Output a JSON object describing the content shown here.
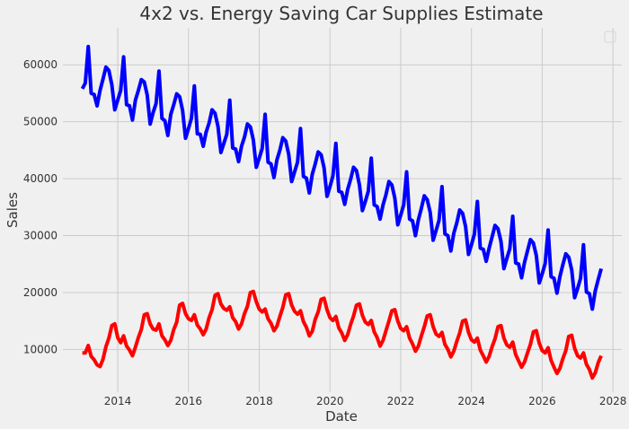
{
  "chart_data": {
    "type": "line",
    "title": "4x2 vs. Energy Saving Car Supplies Estimate",
    "xlabel": "Date",
    "ylabel": "Sales",
    "xlim": [
      2012.45,
      2028.25
    ],
    "ylim": [
      2500,
      66500
    ],
    "grid": true,
    "legend": "top-right (empty)",
    "x_ticks": [
      2014,
      2016,
      2018,
      2020,
      2022,
      2024,
      2026,
      2028
    ],
    "x_tick_labels": [
      "2014",
      "2016",
      "2018",
      "2020",
      "2022",
      "2024",
      "2026",
      "2028"
    ],
    "y_ticks": [
      10000,
      20000,
      30000,
      40000,
      50000,
      60000
    ],
    "y_tick_labels": [
      "10000",
      "20000",
      "30000",
      "40000",
      "50000",
      "60000"
    ],
    "x_start": "2013-01",
    "x_end": "2027-09",
    "series": [
      {
        "color": "#0000ff",
        "x": [
          "2013-01",
          "2013-02",
          "2013-03",
          "2013-04",
          "2013-05",
          "2013-06",
          "2013-07",
          "2013-08",
          "2013-09",
          "2013-10",
          "2013-11",
          "2013-12",
          "2014-01",
          "2014-02",
          "2014-03",
          "2014-04",
          "2014-05",
          "2014-06",
          "2014-07",
          "2014-08",
          "2014-09",
          "2014-10",
          "2014-11",
          "2014-12",
          "2015-01",
          "2015-02",
          "2015-03",
          "2015-04",
          "2015-05",
          "2015-06",
          "2015-07",
          "2015-08",
          "2015-09",
          "2015-10",
          "2015-11",
          "2015-12",
          "2016-01",
          "2016-02",
          "2016-03",
          "2016-04",
          "2016-05",
          "2016-06",
          "2016-07",
          "2016-08",
          "2016-09",
          "2016-10",
          "2016-11",
          "2016-12",
          "2017-01",
          "2017-02",
          "2017-03",
          "2017-04",
          "2017-05",
          "2017-06",
          "2017-07",
          "2017-08",
          "2017-09",
          "2017-10",
          "2017-11",
          "2017-12",
          "2018-01",
          "2018-02",
          "2018-03",
          "2018-04",
          "2018-05",
          "2018-06",
          "2018-07",
          "2018-08",
          "2018-09",
          "2018-10",
          "2018-11",
          "2018-12",
          "2019-01",
          "2019-02",
          "2019-03",
          "2019-04",
          "2019-05",
          "2019-06",
          "2019-07",
          "2019-08",
          "2019-09",
          "2019-10",
          "2019-11",
          "2019-12",
          "2020-01",
          "2020-02",
          "2020-03",
          "2020-04",
          "2020-05",
          "2020-06",
          "2020-07",
          "2020-08",
          "2020-09",
          "2020-10",
          "2020-11",
          "2020-12",
          "2021-01",
          "2021-02",
          "2021-03",
          "2021-04",
          "2021-05",
          "2021-06",
          "2021-07",
          "2021-08",
          "2021-09",
          "2021-10",
          "2021-11",
          "2021-12",
          "2022-01",
          "2022-02",
          "2022-03",
          "2022-04",
          "2022-05",
          "2022-06",
          "2022-07",
          "2022-08",
          "2022-09",
          "2022-10",
          "2022-11",
          "2022-12",
          "2023-01",
          "2023-02",
          "2023-03",
          "2023-04",
          "2023-05",
          "2023-06",
          "2023-07",
          "2023-08",
          "2023-09",
          "2023-10",
          "2023-11",
          "2023-12",
          "2024-01",
          "2024-02",
          "2024-03",
          "2024-04",
          "2024-05",
          "2024-06",
          "2024-07",
          "2024-08",
          "2024-09",
          "2024-10",
          "2024-11",
          "2024-12",
          "2025-01",
          "2025-02",
          "2025-03",
          "2025-04",
          "2025-05",
          "2025-06",
          "2025-07",
          "2025-08",
          "2025-09",
          "2025-10",
          "2025-11",
          "2025-12",
          "2026-01",
          "2026-02",
          "2026-03",
          "2026-04",
          "2026-05",
          "2026-06",
          "2026-07",
          "2026-08",
          "2026-09",
          "2026-10",
          "2026-11",
          "2026-12",
          "2027-01",
          "2027-02",
          "2027-03",
          "2027-04",
          "2027-05",
          "2027-06",
          "2027-07",
          "2027-08",
          "2027-09"
        ],
        "y": [
          55800,
          56800,
          63200,
          55000,
          54800,
          52800,
          55500,
          57500,
          59600,
          59000,
          56500,
          52100,
          53800,
          55500,
          61400,
          53000,
          52800,
          50300,
          53800,
          55500,
          57400,
          57000,
          54700,
          49600,
          51600,
          53200,
          58900,
          50600,
          50200,
          47600,
          51300,
          53000,
          54900,
          54400,
          52000,
          47100,
          48800,
          50600,
          56300,
          47900,
          47800,
          45700,
          48200,
          49800,
          52100,
          51500,
          49200,
          44600,
          46200,
          47800,
          53800,
          45400,
          45200,
          43000,
          45700,
          47300,
          49600,
          49100,
          46800,
          42000,
          43600,
          45300,
          51300,
          42900,
          42600,
          40200,
          43300,
          45000,
          47200,
          46600,
          44300,
          39500,
          41200,
          42900,
          48800,
          40400,
          40100,
          37500,
          40800,
          42600,
          44700,
          44200,
          41900,
          36900,
          38600,
          40500,
          46200,
          37800,
          37600,
          35500,
          38100,
          39900,
          42000,
          41400,
          38900,
          34400,
          36000,
          37800,
          43600,
          35400,
          35100,
          32900,
          35400,
          37200,
          39500,
          38900,
          36600,
          31900,
          33600,
          35400,
          41200,
          32900,
          32600,
          30000,
          32800,
          34800,
          37000,
          36300,
          34100,
          29200,
          30900,
          32700,
          38600,
          30300,
          30000,
          27300,
          30400,
          32200,
          34500,
          33900,
          31600,
          26700,
          28400,
          30300,
          36000,
          27800,
          27600,
          25500,
          27800,
          29800,
          31800,
          31200,
          29000,
          24200,
          26000,
          27700,
          33400,
          25200,
          25000,
          22600,
          25300,
          27300,
          29300,
          28700,
          26500,
          21700,
          23300,
          25100,
          31000,
          22800,
          22500,
          19900,
          22800,
          24900,
          26800,
          26200,
          24000,
          19100,
          20700,
          22500,
          28400,
          20100,
          19800,
          17100,
          20300,
          22300,
          24200
        ]
      },
      {
        "color": "#ff0000",
        "x_same_as_series": 0,
        "y": [
          9400,
          9400,
          10700,
          8800,
          8200,
          7300,
          7000,
          8300,
          10500,
          12000,
          14200,
          14500,
          12100,
          11200,
          12400,
          10600,
          9900,
          8900,
          10400,
          12100,
          13500,
          16100,
          16300,
          14500,
          13600,
          13400,
          14500,
          12400,
          11700,
          10700,
          11600,
          13500,
          14800,
          17800,
          18100,
          16300,
          15400,
          15100,
          16100,
          14300,
          13600,
          12600,
          13600,
          15600,
          17000,
          19500,
          19800,
          18000,
          17200,
          16900,
          17500,
          15600,
          14900,
          13600,
          14500,
          16300,
          17600,
          20000,
          20200,
          18400,
          17100,
          16600,
          17100,
          15400,
          14600,
          13300,
          14100,
          15800,
          17400,
          19600,
          19800,
          17800,
          16700,
          16200,
          16800,
          14900,
          13900,
          12400,
          13200,
          15300,
          16600,
          18800,
          19000,
          17000,
          15600,
          15100,
          15800,
          13800,
          12900,
          11600,
          12600,
          14400,
          15900,
          17800,
          18000,
          16000,
          14800,
          14400,
          15100,
          13100,
          12100,
          10600,
          11600,
          13300,
          15000,
          16800,
          17000,
          15000,
          13700,
          13300,
          14000,
          12000,
          11000,
          9700,
          10600,
          12400,
          14000,
          15900,
          16100,
          14000,
          12700,
          12300,
          13000,
          10900,
          10000,
          8700,
          9700,
          11400,
          12900,
          15000,
          15200,
          13000,
          11700,
          11300,
          12000,
          9900,
          8900,
          7800,
          8800,
          10500,
          11900,
          14000,
          14200,
          12000,
          10800,
          10400,
          11300,
          9100,
          8000,
          6900,
          7800,
          9400,
          10900,
          13100,
          13300,
          11100,
          9800,
          9400,
          10300,
          8100,
          6900,
          5800,
          6700,
          8400,
          9800,
          12300,
          12500,
          10200,
          8900,
          8500,
          9400,
          7400,
          6500,
          5000,
          5900,
          7700,
          8900
        ]
      }
    ]
  }
}
